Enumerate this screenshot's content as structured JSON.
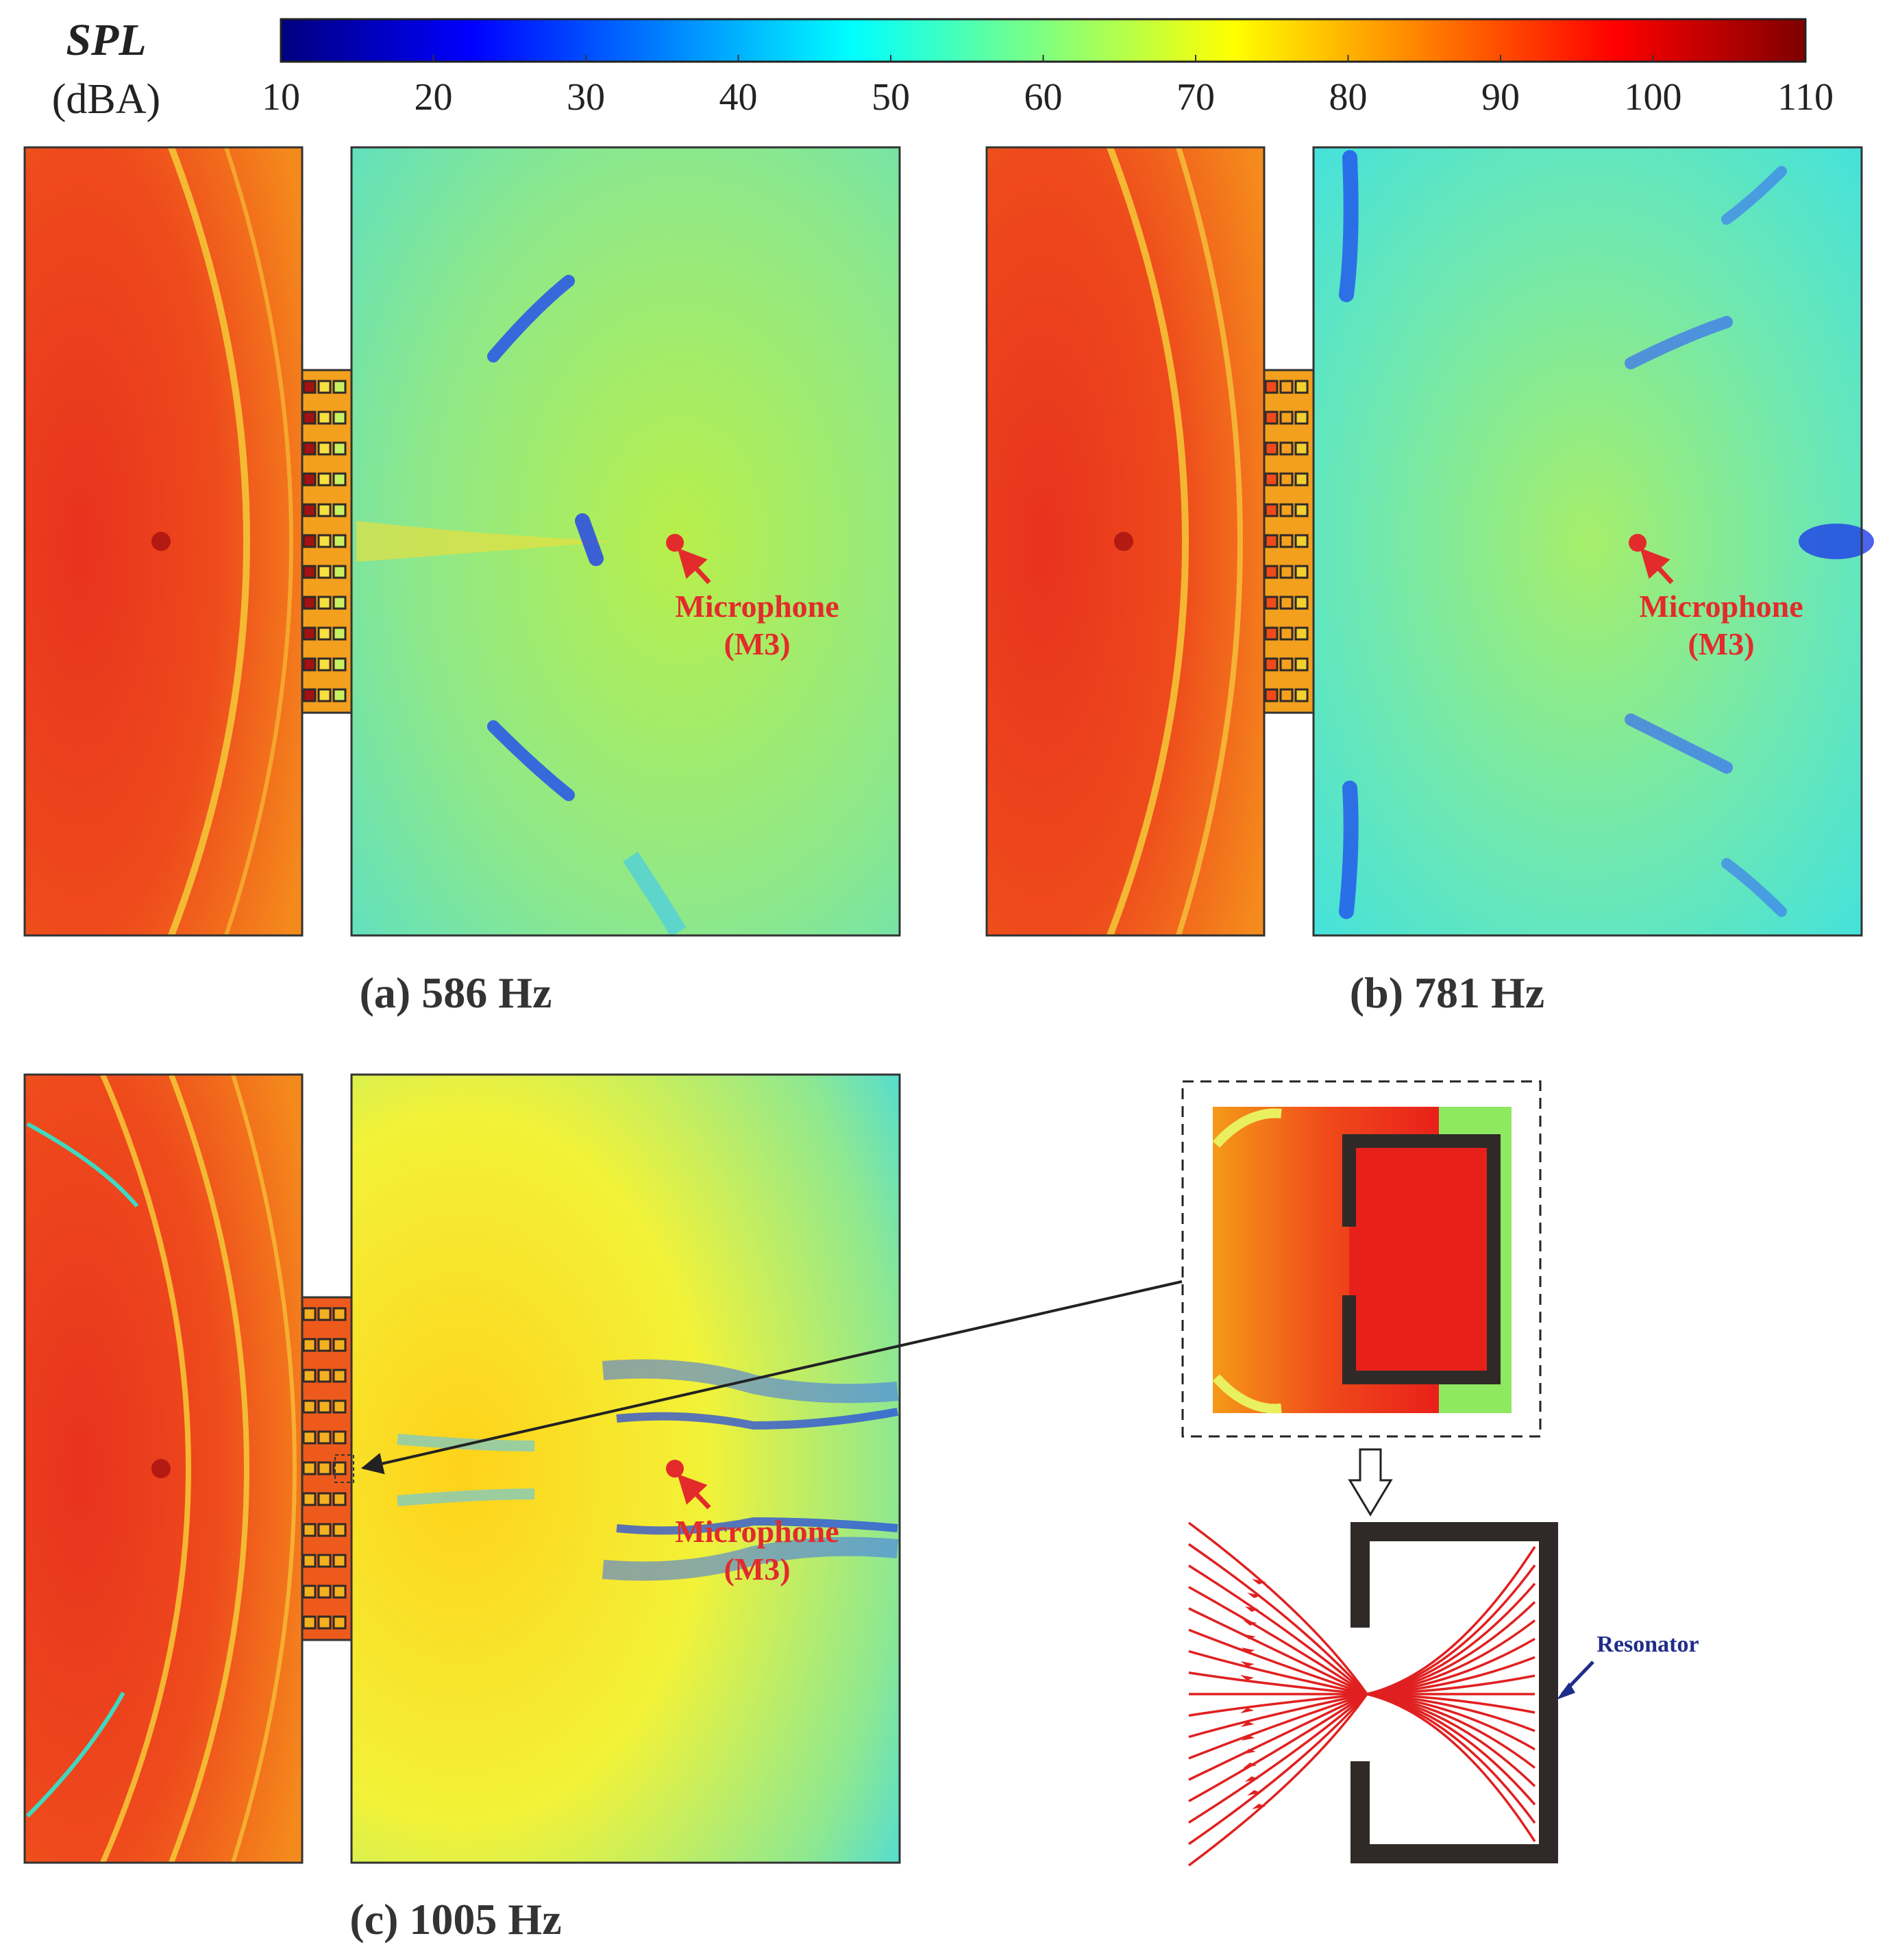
{
  "colorbar": {
    "label": "SPL",
    "unit": "(dBA)",
    "ticks": [
      "10",
      "20",
      "30",
      "40",
      "50",
      "60",
      "70",
      "80",
      "90",
      "100",
      "110"
    ],
    "colormap": "jet"
  },
  "panels": [
    {
      "id": "a",
      "title": "(a) 586 Hz",
      "mic_label": "Microphone",
      "mic_id": "(M3)"
    },
    {
      "id": "b",
      "title": "(b) 781 Hz",
      "mic_label": "Microphone",
      "mic_id": "(M3)"
    },
    {
      "id": "c",
      "title": "(c) 1005 Hz",
      "mic_label": "Microphone",
      "mic_id": "(M3)"
    }
  ],
  "detail": {
    "resonator_label": "Resonator"
  },
  "colors": {
    "mic": "#e32b2b",
    "resonator_wall": "#2f2a28",
    "field_lines": "#e02020",
    "resonator_arrow": "#1f2d8a"
  }
}
